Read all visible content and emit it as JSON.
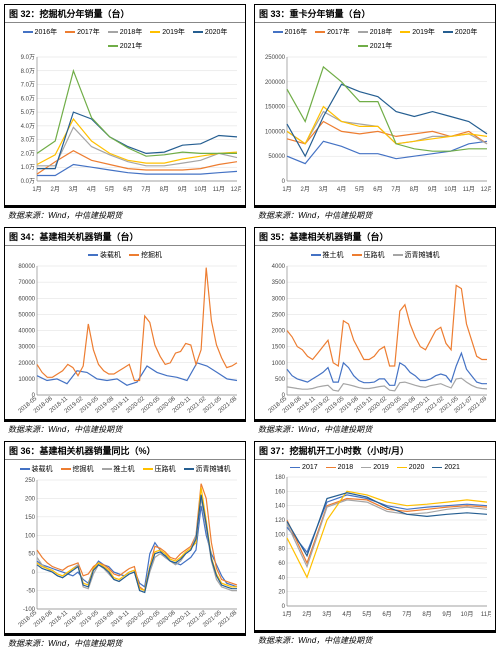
{
  "source_text": "数据来源：Wind，中信建投期货",
  "colors": {
    "blue": "#4472c4",
    "orange": "#ed7d31",
    "gray": "#a5a5a5",
    "yellow": "#ffc000",
    "darkblue": "#255e91",
    "green": "#70ad47",
    "red": "#c00000"
  },
  "charts": [
    {
      "id": "c32",
      "title": "图 32：挖掘机分年销量（台）",
      "legend": [
        "2016年",
        "2017年",
        "2018年",
        "2019年",
        "2020年",
        "2021年"
      ],
      "legend_colors": [
        "#4472c4",
        "#ed7d31",
        "#a5a5a5",
        "#ffc000",
        "#255e91",
        "#70ad47"
      ],
      "x_labels": [
        "1月",
        "2月",
        "3月",
        "4月",
        "5月",
        "6月",
        "7月",
        "8月",
        "9月",
        "10月",
        "11月",
        "12月"
      ],
      "y_labels": [
        "0.0万",
        "1.0万",
        "2.0万",
        "3.0万",
        "4.0万",
        "5.0万",
        "6.0万",
        "7.0万",
        "8.0万",
        "9.0万"
      ],
      "y_max": 9,
      "series": [
        [
          0.4,
          0.4,
          1.2,
          1.0,
          0.8,
          0.6,
          0.5,
          0.5,
          0.5,
          0.5,
          0.6,
          0.7
        ],
        [
          0.5,
          1.4,
          2.2,
          1.5,
          1.2,
          0.9,
          0.8,
          0.8,
          0.8,
          0.9,
          1.2,
          1.4
        ],
        [
          1.1,
          1.1,
          3.9,
          2.5,
          1.9,
          1.4,
          1.1,
          1.1,
          1.3,
          1.5,
          2.0,
          1.7
        ],
        [
          1.2,
          1.9,
          4.5,
          2.9,
          2.0,
          1.5,
          1.3,
          1.3,
          1.6,
          1.8,
          2.0,
          2.1
        ],
        [
          0.9,
          0.9,
          5.0,
          4.5,
          3.2,
          2.5,
          2.0,
          2.1,
          2.6,
          2.7,
          3.3,
          3.2
        ],
        [
          2.0,
          2.9,
          8.0,
          4.6,
          3.2,
          2.4,
          1.8,
          1.9,
          2.1,
          2.0,
          2.0,
          2.0
        ]
      ]
    },
    {
      "id": "c33",
      "title": "图 33：重卡分年销量（台）",
      "legend": [
        "2016年",
        "2017年",
        "2018年",
        "2019年",
        "2020年",
        "2021年"
      ],
      "legend_colors": [
        "#4472c4",
        "#ed7d31",
        "#a5a5a5",
        "#ffc000",
        "#255e91",
        "#70ad47"
      ],
      "x_labels": [
        "1月",
        "2月",
        "3月",
        "4月",
        "5月",
        "6月",
        "7月",
        "8月",
        "9月",
        "10月",
        "11月",
        "12月"
      ],
      "y_labels": [
        "0",
        "50000",
        "100000",
        "150000",
        "200000",
        "250000"
      ],
      "y_max": 250000,
      "series": [
        [
          50000,
          35000,
          80000,
          70000,
          55000,
          55000,
          45000,
          50000,
          55000,
          60000,
          75000,
          80000
        ],
        [
          85000,
          75000,
          120000,
          100000,
          95000,
          100000,
          90000,
          95000,
          100000,
          90000,
          100000,
          75000
        ],
        [
          100000,
          75000,
          140000,
          120000,
          115000,
          110000,
          75000,
          80000,
          90000,
          90000,
          95000,
          75000
        ],
        [
          100000,
          75000,
          150000,
          120000,
          110000,
          110000,
          75000,
          80000,
          85000,
          90000,
          95000,
          90000
        ],
        [
          115000,
          50000,
          130000,
          195000,
          180000,
          170000,
          140000,
          130000,
          140000,
          130000,
          120000,
          95000
        ],
        [
          185000,
          120000,
          230000,
          200000,
          160000,
          160000,
          75000,
          65000,
          60000,
          60000,
          65000,
          65000
        ]
      ]
    },
    {
      "id": "c34",
      "title": "图 34：基建相关机器销量（台）",
      "legend": [
        "装载机",
        "挖掘机"
      ],
      "legend_colors": [
        "#4472c4",
        "#ed7d31"
      ],
      "x_labels": [
        "2018-05",
        "2018-08",
        "2018-11",
        "2019-02",
        "2019-05",
        "2019-08",
        "2019-11",
        "2020-02",
        "2020-05",
        "2020-08",
        "2020-11",
        "2021-02",
        "2021-05",
        "2021-08"
      ],
      "y_labels": [
        "0",
        "10000",
        "20000",
        "30000",
        "40000",
        "50000",
        "60000",
        "70000",
        "80000"
      ],
      "y_max": 80000,
      "series": [
        [
          12000,
          9000,
          10000,
          7000,
          15000,
          14000,
          10000,
          9000,
          10000,
          6000,
          8000,
          18000,
          14000,
          12000,
          11000,
          9000,
          20000,
          18000,
          14000,
          10000,
          9000
        ],
        [
          19000,
          14000,
          11000,
          11000,
          13000,
          15000,
          19000,
          17000,
          12000,
          18000,
          44000,
          28000,
          19000,
          15000,
          13000,
          13000,
          15000,
          17000,
          19000,
          9000,
          9000,
          49000,
          45000,
          31000,
          24000,
          19000,
          20000,
          26000,
          27000,
          32000,
          31000,
          19000,
          28000,
          79000,
          46000,
          31000,
          23000,
          17000,
          18000,
          20000
        ]
      ]
    },
    {
      "id": "c35",
      "title": "图 35：基建相关机器销量（台）",
      "legend": [
        "推土机",
        "压路机",
        "沥青摊铺机"
      ],
      "legend_colors": [
        "#4472c4",
        "#ed7d31",
        "#a5a5a5"
      ],
      "x_labels": [
        "2018-05",
        "2018-08",
        "2018-11",
        "2019-02",
        "2019-05",
        "2019-08",
        "2019-11",
        "2020-02",
        "2020-05",
        "2020-08",
        "2020-11",
        "2021-02",
        "2021-05",
        "2021-07",
        "2021-09"
      ],
      "y_labels": [
        "0",
        "500",
        "1000",
        "1500",
        "2000",
        "2500",
        "3000",
        "3500",
        "4000"
      ],
      "y_max": 4000,
      "series": [
        [
          800,
          600,
          500,
          450,
          400,
          500,
          600,
          700,
          850,
          400,
          400,
          1000,
          850,
          600,
          450,
          380,
          380,
          400,
          500,
          500,
          300,
          300,
          1000,
          900,
          700,
          600,
          450,
          450,
          500,
          600,
          650,
          600,
          400,
          900,
          1300,
          800,
          600,
          400,
          350,
          350
        ],
        [
          2000,
          1800,
          1500,
          1400,
          1200,
          1100,
          1300,
          1500,
          1700,
          1000,
          900,
          2300,
          2200,
          1700,
          1400,
          1100,
          1100,
          1200,
          1400,
          1500,
          900,
          900,
          2600,
          2800,
          2200,
          1800,
          1500,
          1400,
          1700,
          2000,
          2100,
          1600,
          1400,
          3400,
          3300,
          2200,
          1700,
          1200,
          1100,
          1100
        ],
        [
          250,
          230,
          200,
          180,
          180,
          200,
          250,
          280,
          300,
          150,
          120,
          350,
          320,
          280,
          230,
          200,
          200,
          230,
          260,
          280,
          150,
          130,
          380,
          400,
          350,
          300,
          260,
          240,
          290,
          320,
          350,
          280,
          220,
          500,
          520,
          400,
          300,
          230,
          200,
          190
        ]
      ]
    },
    {
      "id": "c36",
      "title": "图 36：基建相关机器销量同比（%）",
      "legend": [
        "装载机",
        "挖掘机",
        "推土机",
        "压路机",
        "沥青摊铺机"
      ],
      "legend_colors": [
        "#4472c4",
        "#ed7d31",
        "#a5a5a5",
        "#ffc000",
        "#255e91"
      ],
      "x_labels": [
        "2018-05",
        "2018-08",
        "2018-11",
        "2019-02",
        "2019-05",
        "2019-08",
        "2019-11",
        "2020-02",
        "2020-05",
        "2020-08",
        "2020-11",
        "2021-02",
        "2021-05",
        "2021-08"
      ],
      "y_labels": [
        "-100",
        "-50",
        "0",
        "50",
        "100",
        "150",
        "200",
        "250"
      ],
      "y_min": -100,
      "y_max": 250,
      "series": [
        [
          30,
          20,
          15,
          10,
          5,
          0,
          -5,
          -10,
          0,
          -20,
          -30,
          10,
          30,
          20,
          15,
          0,
          -5,
          -10,
          0,
          5,
          -30,
          -40,
          50,
          80,
          60,
          40,
          30,
          25,
          20,
          30,
          40,
          60,
          180,
          100,
          50,
          20,
          -10,
          -30,
          -35,
          -40
        ],
        [
          60,
          40,
          25,
          15,
          10,
          5,
          15,
          20,
          25,
          -10,
          -5,
          15,
          25,
          20,
          10,
          -5,
          -10,
          0,
          10,
          15,
          -40,
          -50,
          15,
          70,
          65,
          55,
          40,
          35,
          50,
          60,
          70,
          100,
          240,
          200,
          80,
          10,
          -20,
          -25,
          -30,
          -35
        ],
        [
          40,
          20,
          10,
          0,
          -10,
          -15,
          -5,
          10,
          20,
          -40,
          -45,
          -5,
          20,
          10,
          -5,
          -20,
          -25,
          -15,
          -5,
          0,
          -50,
          -55,
          0,
          40,
          50,
          40,
          30,
          20,
          30,
          50,
          60,
          100,
          200,
          120,
          30,
          -20,
          -40,
          -45,
          -50,
          -50
        ],
        [
          25,
          15,
          10,
          5,
          -5,
          -10,
          0,
          10,
          15,
          -30,
          -35,
          10,
          25,
          15,
          5,
          -15,
          -20,
          -10,
          0,
          5,
          -45,
          -50,
          15,
          55,
          60,
          50,
          35,
          30,
          40,
          55,
          65,
          80,
          230,
          140,
          40,
          -5,
          -30,
          -35,
          -40,
          -40
        ],
        [
          20,
          10,
          5,
          0,
          -10,
          -15,
          -5,
          5,
          15,
          -35,
          -40,
          5,
          20,
          12,
          0,
          -20,
          -25,
          -15,
          -5,
          0,
          -50,
          -55,
          10,
          50,
          55,
          45,
          30,
          25,
          35,
          50,
          60,
          90,
          210,
          130,
          35,
          -10,
          -35,
          -40,
          -45,
          -45
        ]
      ]
    },
    {
      "id": "c37",
      "title": "图 37：挖掘机开工小时数（小时/月）",
      "legend": [
        "2017",
        "2018",
        "2019",
        "2020",
        "2021"
      ],
      "legend_colors": [
        "#4472c4",
        "#ed7d31",
        "#a5a5a5",
        "#ffc000",
        "#255e91"
      ],
      "x_labels": [
        "1月",
        "2月",
        "3月",
        "4月",
        "5月",
        "6月",
        "7月",
        "8月",
        "9月",
        "10月",
        "11月"
      ],
      "y_labels": [
        "0",
        "20",
        "40",
        "60",
        "80",
        "100",
        "120",
        "140",
        "160",
        "180"
      ],
      "y_max": 180,
      "series": [
        [
          110,
          75,
          145,
          155,
          150,
          140,
          135,
          138,
          140,
          142,
          140
        ],
        [
          120,
          60,
          140,
          150,
          148,
          135,
          132,
          135,
          138,
          140,
          138
        ],
        [
          115,
          55,
          138,
          148,
          145,
          132,
          128,
          130,
          135,
          138,
          135
        ],
        [
          95,
          40,
          120,
          160,
          155,
          145,
          140,
          142,
          145,
          148,
          145
        ],
        [
          118,
          70,
          150,
          158,
          152,
          138,
          128,
          125,
          128,
          130,
          128
        ]
      ]
    }
  ]
}
